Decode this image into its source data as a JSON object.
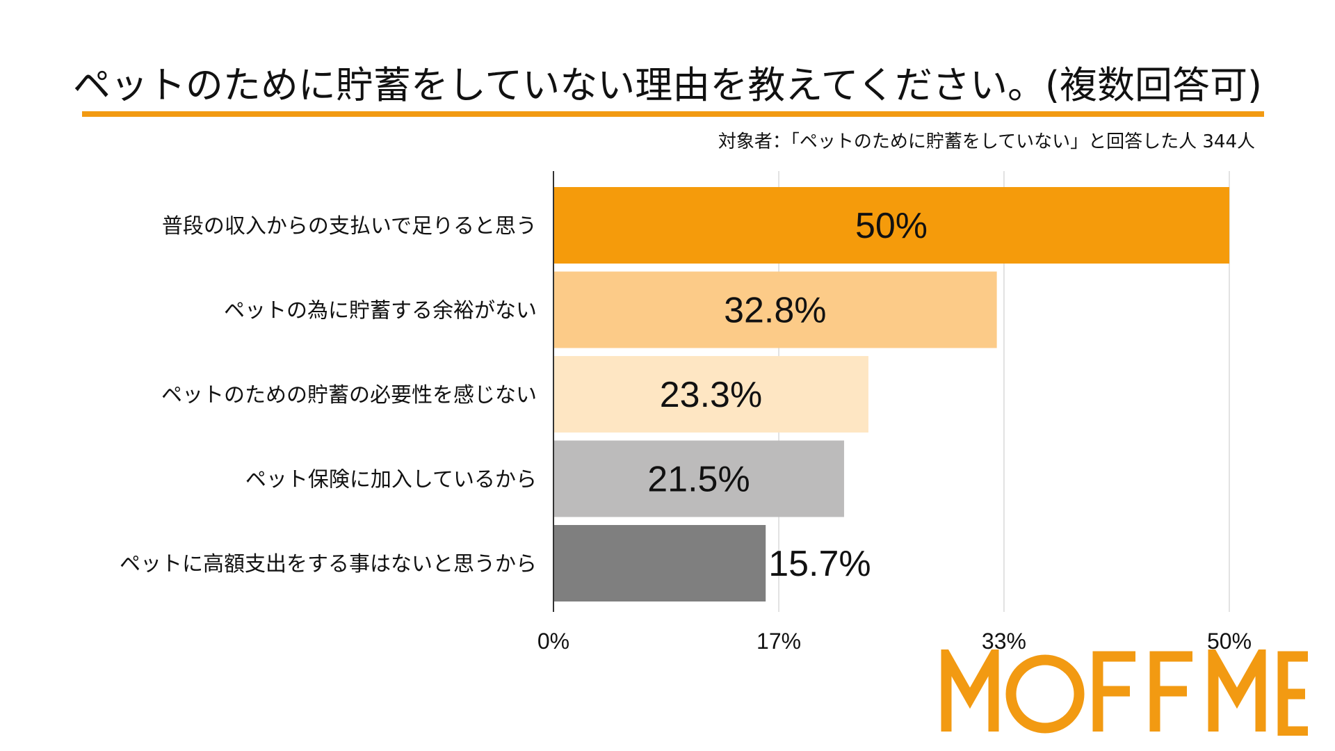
{
  "title": "ペットのために貯蓄をしていない理由を教えてください。(複数回答可)",
  "subtitle": "対象者：「ペットのために貯蓄をしていない」と回答した人 344人",
  "logo_text": "MOFFME",
  "colors": {
    "accent": "#F29A12",
    "bars": [
      "#F59B0B",
      "#FCCB88",
      "#FEE6C3",
      "#BCBBBB",
      "#7F7F7F"
    ],
    "grid": "#d9d9d9",
    "axis": "#333333"
  },
  "chart_data": {
    "type": "bar",
    "orientation": "horizontal",
    "title": "ペットのために貯蓄をしていない理由を教えてください。(複数回答可)",
    "categories": [
      "普段の収入からの支払いで足りると思う",
      "ペットの為に貯蓄する余裕がない",
      "ペットのための貯蓄の必要性を感じない",
      "ペット保険に加入しているから",
      "ペットに高額支出をする事はないと思うから"
    ],
    "values": [
      50,
      32.8,
      23.3,
      21.5,
      15.7
    ],
    "value_labels": [
      "50%",
      "32.8%",
      "23.3%",
      "21.5%",
      "15.7%"
    ],
    "xlim": [
      0,
      50
    ],
    "ticks": [
      0,
      16.67,
      33.33,
      50
    ],
    "tick_labels": [
      "0%",
      "17%",
      "33%",
      "50%"
    ],
    "grid": true,
    "legend": "none"
  }
}
